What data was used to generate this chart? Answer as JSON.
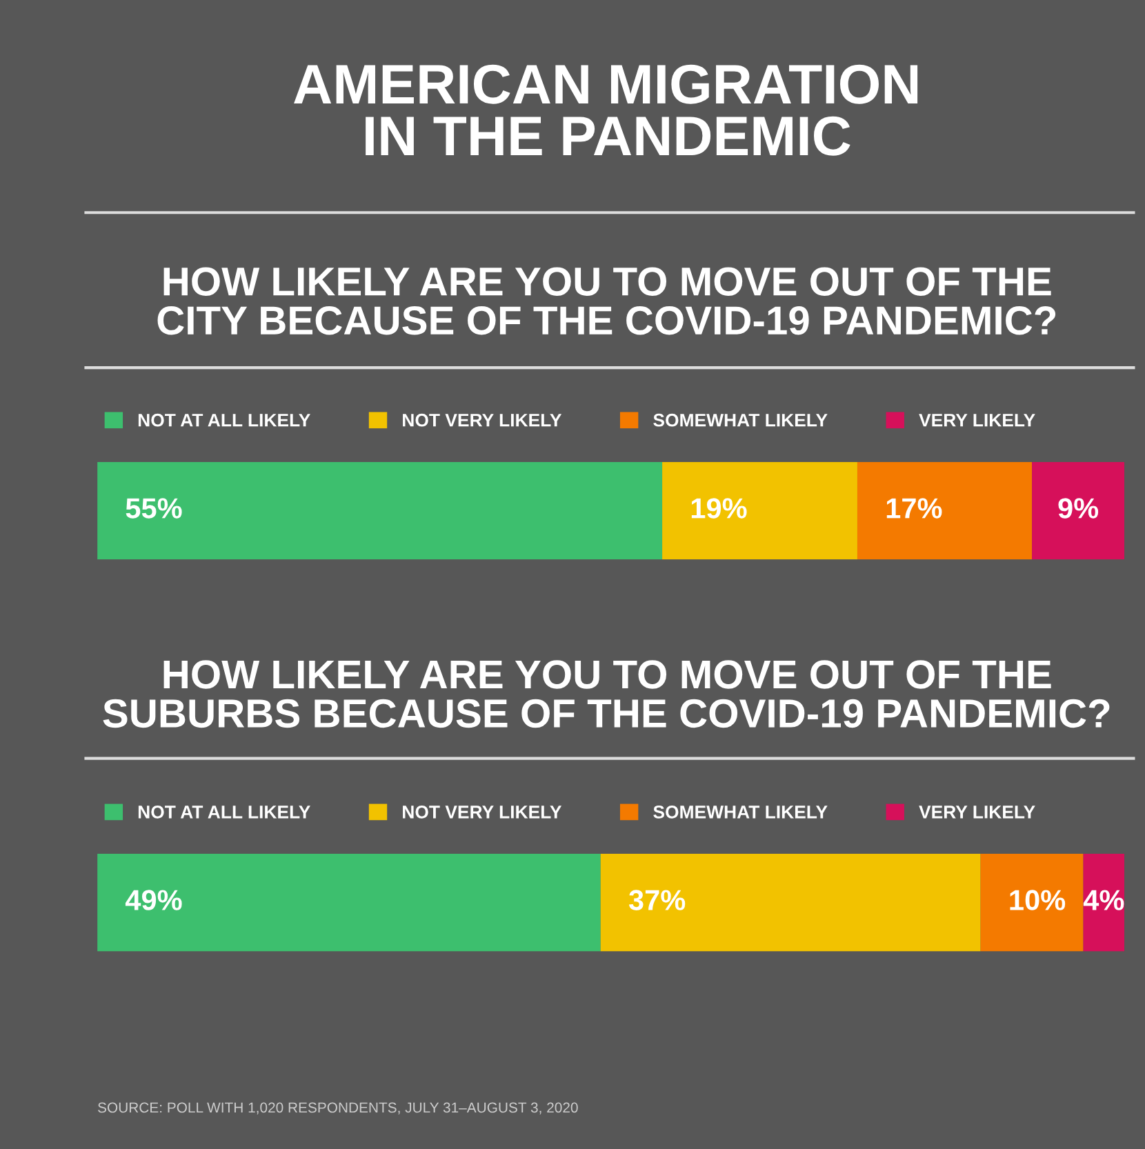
{
  "chart_data": [
    {
      "type": "bar",
      "orientation": "horizontal",
      "stacked": true,
      "title": "AMERICAN MIGRATION\nIN THE PANDEMIC",
      "subtitle": "HOW LIKELY ARE YOU TO MOVE OUT OF THE\nCITY BECAUSE OF THE COVID-19 PANDEMIC?",
      "categories": [
        null
      ],
      "legend": "top",
      "tick_labels": false,
      "series": [
        {
          "name": "NOT AT ALL LIKELY",
          "color": "#3dbf6e",
          "values": [
            55
          ],
          "value_labels": [
            "55%"
          ]
        },
        {
          "name": "NOT VERY LIKELY",
          "color": "#f2c200",
          "values": [
            19
          ],
          "value_labels": [
            "19%"
          ]
        },
        {
          "name": "SOMEWHAT LIKELY",
          "color": "#f47a00",
          "values": [
            17
          ],
          "value_labels": [
            "17%"
          ]
        },
        {
          "name": "VERY LIKELY",
          "color": "#d6105a",
          "values": [
            9
          ],
          "value_labels": [
            "9%"
          ]
        }
      ]
    },
    {
      "type": "bar",
      "orientation": "horizontal",
      "stacked": true,
      "title": "HOW LIKELY ARE YOU TO MOVE OUT OF THE\nSUBURBS BECAUSE OF THE COVID-19 PANDEMIC?",
      "categories": [
        null
      ],
      "legend": "top",
      "tick_labels": false,
      "annotations": [
        "SOURCE: POLL WITH 1,020 RESPONDENTS, JULY 31–AUGUST 3, 2020"
      ],
      "series": [
        {
          "name": "NOT AT ALL LIKELY",
          "color": "#3dbf6e",
          "values": [
            49
          ],
          "value_labels": [
            "49%"
          ]
        },
        {
          "name": "NOT VERY LIKELY",
          "color": "#f2c200",
          "values": [
            37
          ],
          "value_labels": [
            "37%"
          ]
        },
        {
          "name": "SOMEWHAT LIKELY",
          "color": "#f47a00",
          "values": [
            10
          ],
          "value_labels": [
            "10%"
          ]
        },
        {
          "name": "VERY LIKELY",
          "color": "#d6105a",
          "values": [
            4
          ],
          "value_labels": [
            "4%"
          ]
        }
      ]
    }
  ]
}
